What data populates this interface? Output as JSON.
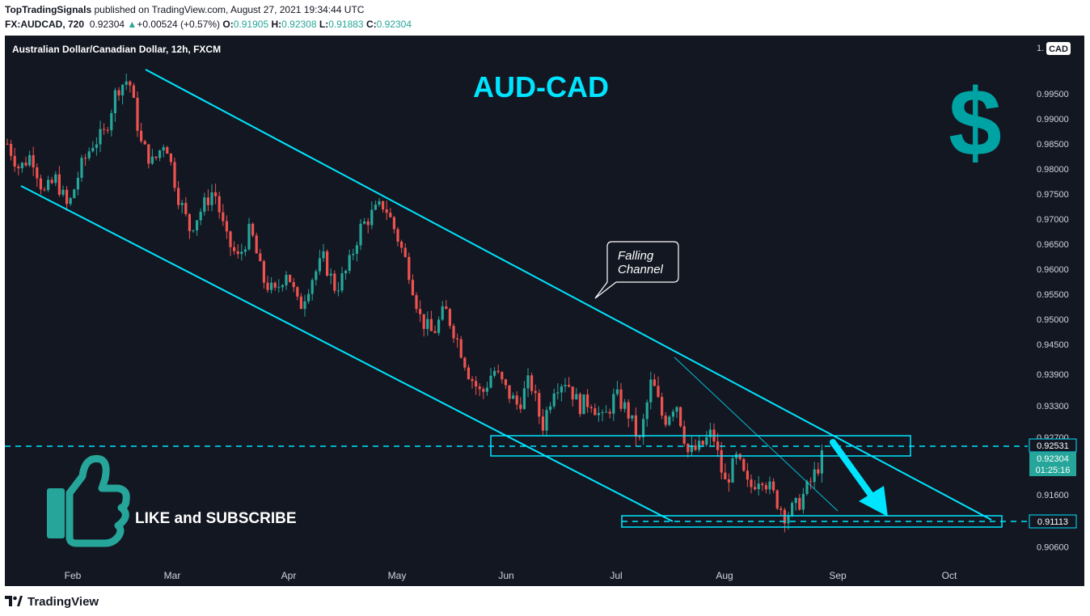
{
  "header": {
    "publisher": "TopTradingSignals",
    "published_text": "published on TradingView.com, August 27, 2021 19:34:44 UTC",
    "symbol": "FX:AUDCAD, 720",
    "last": "0.92304",
    "change_arrow": "▲",
    "change": "+0.00524 (+0.57%)",
    "o_label": "O:",
    "o": "0.91905",
    "h_label": "H:",
    "h": "0.92308",
    "l_label": "L:",
    "l": "0.91883",
    "c_label": "C:",
    "c": "0.92304"
  },
  "chart_title": "Australian Dollar/Canadian Dollar, 12h, FXCM",
  "headline": "AUD-CAD",
  "dollar_symbol": "$",
  "callout": {
    "line1": "Falling",
    "line2": "Channel"
  },
  "like_text": "LIKE and SUBSCRIBE",
  "currency_badge": "CAD",
  "axis_top_partial": "1.",
  "footer": {
    "brand": "TradingView",
    "icon": "tradingview-logo-icon"
  },
  "colors": {
    "background": "#131722",
    "up": "#26a69a",
    "down": "#ef5350",
    "drawing": "#00e5ff",
    "headline": "#00e5ff",
    "dollar": "#00a3a3",
    "thumb": "#26a69a",
    "last_price_bg": "#26a69a"
  },
  "chart_data": {
    "type": "candlestick",
    "title": "Australian Dollar/Canadian Dollar, 12h, FXCM",
    "y_ticks": [
      "0.99500",
      "0.99000",
      "0.98500",
      "0.98000",
      "0.97500",
      "0.97000",
      "0.96500",
      "0.96000",
      "0.95500",
      "0.95000",
      "0.94500",
      "0.93900",
      "0.93300",
      "0.92700",
      "0.91600",
      "0.90600"
    ],
    "x_ticks": [
      "Feb",
      "Mar",
      "Apr",
      "May",
      "Jun",
      "Jul",
      "Aug",
      "Sep",
      "Oct"
    ],
    "price_labels": [
      {
        "value": "0.92531",
        "style": "cyan-outline"
      },
      {
        "value": "0.92304",
        "style": "last-price"
      },
      {
        "value": "01:25:16",
        "style": "countdown"
      },
      {
        "value": "0.91113",
        "style": "cyan-outline"
      }
    ],
    "close_path": [
      0.985,
      0.98,
      0.983,
      0.975,
      0.978,
      0.972,
      0.98,
      0.985,
      0.987,
      0.996,
      0.998,
      0.985,
      0.981,
      0.986,
      0.975,
      0.968,
      0.972,
      0.976,
      0.966,
      0.962,
      0.968,
      0.958,
      0.955,
      0.96,
      0.952,
      0.958,
      0.962,
      0.956,
      0.96,
      0.968,
      0.971,
      0.973,
      0.967,
      0.96,
      0.95,
      0.947,
      0.952,
      0.946,
      0.939,
      0.935,
      0.94,
      0.936,
      0.933,
      0.938,
      0.929,
      0.937,
      0.938,
      0.933,
      0.934,
      0.93,
      0.935,
      0.932,
      0.926,
      0.938,
      0.93,
      0.934,
      0.924,
      0.925,
      0.928,
      0.918,
      0.923,
      0.917,
      0.92,
      0.916,
      0.912,
      0.914,
      0.918,
      0.923
    ],
    "levels": [
      0.92531,
      0.91113
    ],
    "annotations": [
      "AUD-CAD",
      "Falling Channel",
      "LIKE and SUBSCRIBE"
    ]
  }
}
